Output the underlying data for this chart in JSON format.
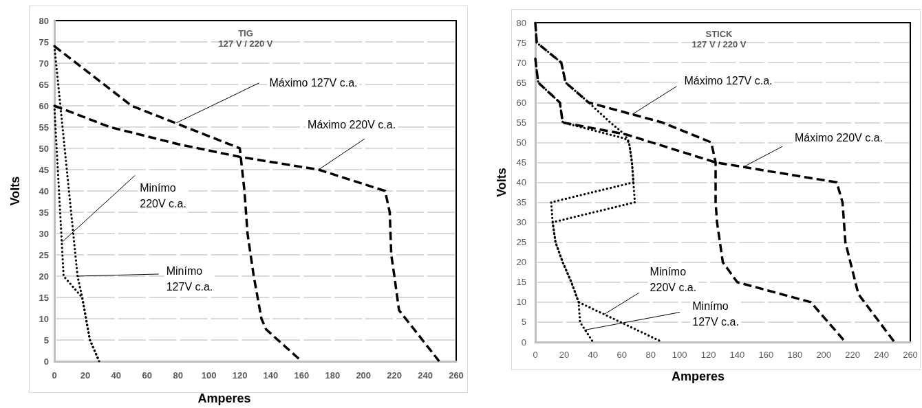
{
  "chart_data": [
    {
      "type": "line",
      "title": "TIG",
      "subtitle": "127 V / 220 V",
      "xlabel": "Amperes",
      "ylabel": "Volts",
      "xlim": [
        0,
        260
      ],
      "xticks": [
        0,
        20,
        40,
        60,
        80,
        100,
        120,
        140,
        160,
        180,
        200,
        220,
        240,
        260
      ],
      "ylim": [
        0,
        80
      ],
      "yticks": [
        0,
        5,
        10,
        15,
        20,
        25,
        30,
        35,
        40,
        45,
        50,
        55,
        60,
        65,
        70,
        75,
        80
      ],
      "grid": "y",
      "marker": "none",
      "series": [
        {
          "color": "#000000",
          "line_style": "dashed",
          "x": [
            0,
            50,
            120,
            123,
            125,
            129,
            134,
            137,
            160
          ],
          "values": [
            74,
            60,
            50,
            40,
            30,
            20,
            10,
            7.5,
            0
          ]
        },
        {
          "color": "#000000",
          "line_style": "dashed",
          "x": [
            0,
            36,
            80,
            120,
            171,
            214,
            217,
            218,
            220,
            223,
            249
          ],
          "values": [
            60,
            55,
            51,
            48,
            45,
            40,
            35,
            25,
            20,
            12,
            0
          ]
        },
        {
          "color": "#000000",
          "line_style": "dotted",
          "x": [
            0,
            15,
            18,
            23,
            29
          ],
          "values": [
            74,
            20,
            15,
            5,
            0
          ]
        },
        {
          "color": "#000000",
          "line_style": "dotted",
          "x": [
            0,
            6,
            18,
            23,
            29
          ],
          "values": [
            60,
            20,
            15,
            5,
            0
          ]
        }
      ],
      "annotations": [
        {
          "text": "Máximo 127V c.a.",
          "x": 79,
          "y": 56
        },
        {
          "text": "Máximo 220V c.a.",
          "x": 171,
          "y": 45
        },
        {
          "text": "Minímo\n220V c.a.",
          "x": 5,
          "y": 28
        },
        {
          "text": "Minímo\n127V c.a.",
          "x": 15,
          "y": 20
        }
      ]
    },
    {
      "type": "line",
      "title": "STICK",
      "subtitle": "127 V / 220 V",
      "xlabel": "Amperes",
      "ylabel": "Volts",
      "xlim": [
        0,
        260
      ],
      "xticks": [
        0,
        20,
        40,
        60,
        80,
        100,
        120,
        140,
        160,
        180,
        200,
        220,
        240,
        260
      ],
      "ylim": [
        0,
        80
      ],
      "yticks": [
        0,
        5,
        10,
        15,
        20,
        25,
        30,
        35,
        40,
        45,
        50,
        55,
        60,
        65,
        70,
        75,
        80
      ],
      "grid": "y",
      "marker": "none",
      "series": [
        {
          "color": "#000000",
          "line_style": "dashed",
          "x": [
            0,
            1,
            18,
            21,
            37,
            88,
            122,
            125,
            125,
            126,
            130,
            140,
            191,
            215
          ],
          "values": [
            80,
            75,
            70,
            65,
            60,
            55,
            50,
            45,
            35,
            30,
            20,
            15,
            10,
            0
          ]
        },
        {
          "color": "#000000",
          "line_style": "dashed",
          "x": [
            0,
            2,
            17,
            19,
            63,
            125,
            209,
            213,
            215,
            224,
            249
          ],
          "values": [
            71,
            65,
            60,
            55,
            52,
            45,
            40,
            35,
            25,
            12,
            0
          ]
        },
        {
          "color": "#000000",
          "line_style": "dotted",
          "x": [
            0,
            1,
            18,
            21,
            37,
            52,
            62,
            65,
            67,
            68,
            11,
            12,
            14,
            19,
            25,
            30,
            31,
            40
          ],
          "values": [
            80,
            75,
            70,
            65,
            60,
            55,
            52,
            50,
            45,
            40,
            35,
            30,
            25,
            20,
            15,
            10,
            5,
            0
          ]
        },
        {
          "color": "#000000",
          "line_style": "dotted",
          "x": [
            0,
            2,
            17,
            19,
            62,
            65,
            67,
            68,
            69,
            12,
            14,
            19,
            25,
            30,
            88
          ],
          "values": [
            71,
            65,
            60,
            55,
            51,
            50,
            45,
            40,
            35,
            30,
            25,
            20,
            15,
            10,
            0
          ]
        }
      ],
      "annotations": [
        {
          "text": "Máximo 127V c.a.",
          "x": 67,
          "y": 57
        },
        {
          "text": "Máximo 220V c.a.",
          "x": 145,
          "y": 44
        },
        {
          "text": "Minímo\n220V c.a.",
          "x": 48,
          "y": 7
        },
        {
          "text": "Minímo\n127V c.a.",
          "x": 34,
          "y": 3
        }
      ]
    }
  ]
}
